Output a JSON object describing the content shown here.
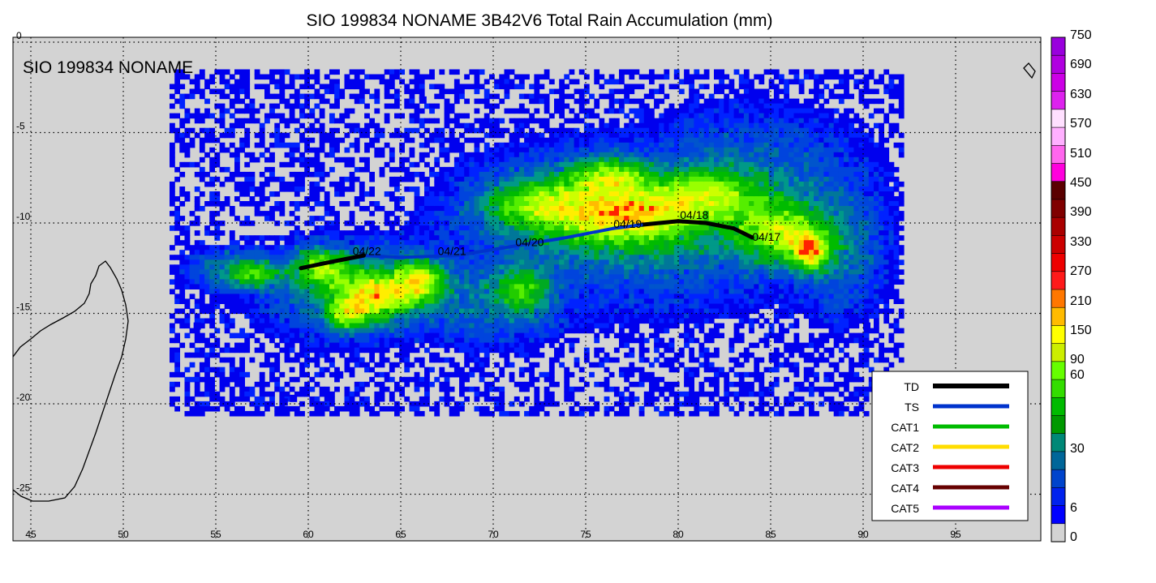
{
  "title": "SIO 199834 NONAME 3B42V6 Total Rain Accumulation (mm)",
  "map_label": "SIO 199834 NONAME",
  "axes": {
    "lon_ticks": [
      "45",
      "50",
      "55",
      "60",
      "65",
      "70",
      "75",
      "80",
      "85",
      "90",
      "95"
    ],
    "lat_ticks": [
      "0",
      "-5",
      "-10",
      "-15",
      "-20",
      "-25"
    ]
  },
  "colorbar": {
    "labels": [
      "750",
      "690",
      "630",
      "570",
      "510",
      "450",
      "390",
      "330",
      "270",
      "210",
      "150",
      "90",
      "60",
      "30",
      "6",
      "0"
    ],
    "colors": [
      "#9900dd",
      "#b000e0",
      "#cc00e6",
      "#dd22ee",
      "#ffe0ff",
      "#ffb0ff",
      "#ff66ee",
      "#ff00dd",
      "#5a0000",
      "#800000",
      "#aa0000",
      "#cc0000",
      "#ee0000",
      "#ff1a1a",
      "#ff7700",
      "#ffbb00",
      "#ffff00",
      "#ccee00",
      "#66ff00",
      "#33dd00",
      "#00bb00",
      "#009900",
      "#008877",
      "#006699",
      "#0044cc",
      "#0022ee",
      "#0000ff",
      "#d3d3d3"
    ]
  },
  "legend": {
    "items": [
      {
        "label": "TD",
        "color": "#000000"
      },
      {
        "label": "TS",
        "color": "#0033cc"
      },
      {
        "label": "CAT1",
        "color": "#00bb00"
      },
      {
        "label": "CAT2",
        "color": "#ffdd00"
      },
      {
        "label": "CAT3",
        "color": "#ee0000"
      },
      {
        "label": "CAT4",
        "color": "#660000"
      },
      {
        "label": "CAT5",
        "color": "#aa00ff"
      }
    ]
  },
  "track": {
    "date_labels": [
      "04/17",
      "04/18",
      "04/19",
      "04/20",
      "04/21",
      "04/22"
    ],
    "points": [
      {
        "lon": 84.0,
        "lat": -10.8,
        "cat": "TD"
      },
      {
        "lon": 83.0,
        "lat": -10.3,
        "cat": "TD"
      },
      {
        "lon": 81.5,
        "lat": -10.0,
        "cat": "TD"
      },
      {
        "lon": 80.0,
        "lat": -9.9,
        "cat": "TD"
      },
      {
        "lon": 78.0,
        "lat": -10.1,
        "cat": "TD"
      },
      {
        "lon": 76.5,
        "lat": -10.3,
        "cat": "TS"
      },
      {
        "lon": 74.0,
        "lat": -10.8,
        "cat": "TS"
      },
      {
        "lon": 71.0,
        "lat": -11.3,
        "cat": "TS"
      },
      {
        "lon": 68.0,
        "lat": -11.8,
        "cat": "TS"
      },
      {
        "lon": 65.0,
        "lat": -11.9,
        "cat": "TS"
      },
      {
        "lon": 63.0,
        "lat": -11.8,
        "cat": "TD"
      },
      {
        "lon": 61.0,
        "lat": -12.2,
        "cat": "TD"
      },
      {
        "lon": 59.6,
        "lat": -12.5,
        "cat": "TD"
      }
    ]
  }
}
